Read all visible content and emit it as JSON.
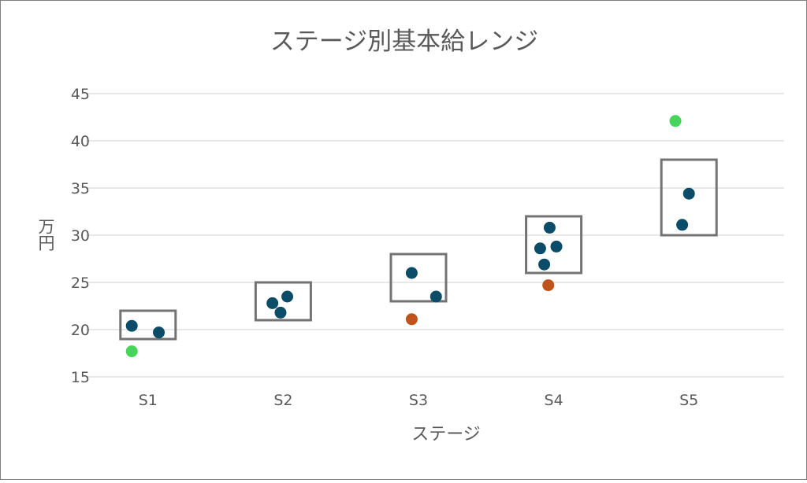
{
  "chart_data": {
    "type": "scatter",
    "title": "ステージ別基本給レンジ",
    "xlabel": "ステージ",
    "ylabel": "万円",
    "ylim": [
      15,
      45
    ],
    "yticks": [
      15,
      20,
      25,
      30,
      35,
      40,
      45
    ],
    "grid": true,
    "categories": [
      "S1",
      "S2",
      "S3",
      "S4",
      "S5"
    ],
    "ranges": [
      {
        "stage": "S1",
        "min": 19,
        "max": 22
      },
      {
        "stage": "S2",
        "min": 21,
        "max": 25
      },
      {
        "stage": "S3",
        "min": 23,
        "max": 28
      },
      {
        "stage": "S4",
        "min": 26,
        "max": 32
      },
      {
        "stage": "S5",
        "min": 30,
        "max": 38
      }
    ],
    "points": [
      {
        "stage": "S1",
        "offset": -0.12,
        "y": 20.4,
        "status": "within"
      },
      {
        "stage": "S1",
        "offset": 0.08,
        "y": 19.7,
        "status": "within"
      },
      {
        "stage": "S1",
        "offset": -0.12,
        "y": 17.7,
        "status": "below"
      },
      {
        "stage": "S2",
        "offset": -0.08,
        "y": 22.8,
        "status": "within"
      },
      {
        "stage": "S2",
        "offset": 0.03,
        "y": 23.5,
        "status": "within"
      },
      {
        "stage": "S2",
        "offset": -0.02,
        "y": 21.8,
        "status": "within"
      },
      {
        "stage": "S3",
        "offset": -0.05,
        "y": 26.0,
        "status": "within"
      },
      {
        "stage": "S3",
        "offset": 0.13,
        "y": 23.5,
        "status": "within"
      },
      {
        "stage": "S3",
        "offset": -0.05,
        "y": 21.1,
        "status": "outside"
      },
      {
        "stage": "S4",
        "offset": -0.03,
        "y": 30.8,
        "status": "within"
      },
      {
        "stage": "S4",
        "offset": -0.1,
        "y": 28.6,
        "status": "within"
      },
      {
        "stage": "S4",
        "offset": 0.02,
        "y": 28.8,
        "status": "within"
      },
      {
        "stage": "S4",
        "offset": -0.07,
        "y": 26.9,
        "status": "within"
      },
      {
        "stage": "S4",
        "offset": -0.04,
        "y": 24.7,
        "status": "outside"
      },
      {
        "stage": "S5",
        "offset": -0.1,
        "y": 42.1,
        "status": "above"
      },
      {
        "stage": "S5",
        "offset": 0.0,
        "y": 34.4,
        "status": "within"
      },
      {
        "stage": "S5",
        "offset": -0.05,
        "y": 31.1,
        "status": "within"
      }
    ],
    "colors": {
      "within": "#0b4d68",
      "below": "#47d45a",
      "above": "#47d45a",
      "outside": "#c0531b",
      "range_box": "#737373",
      "grid": "#d9d9d9",
      "text": "#595959"
    }
  }
}
